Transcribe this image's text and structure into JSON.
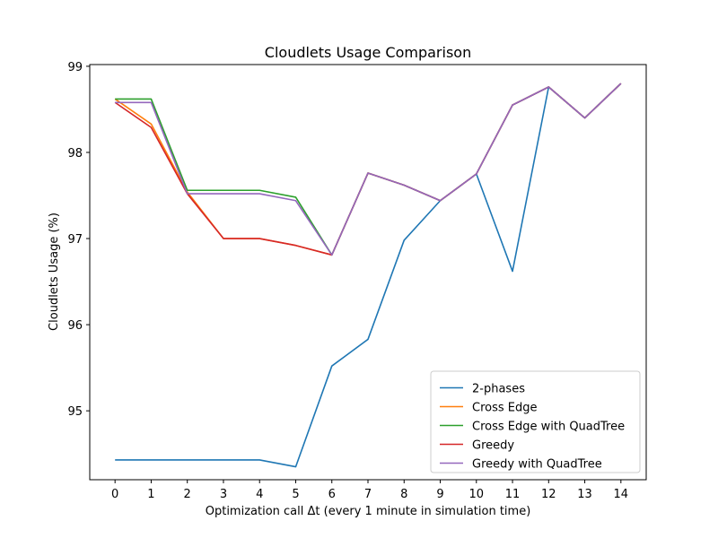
{
  "chart_data": {
    "type": "line",
    "title": "Cloudlets Usage Comparison",
    "xlabel": "Optimization call Δt (every 1 minute in simulation time)",
    "ylabel": "Cloudlets Usage (%)",
    "x": [
      0,
      1,
      2,
      3,
      4,
      5,
      6,
      7,
      8,
      9,
      10,
      11,
      12,
      13,
      14
    ],
    "xticks": [
      "0",
      "1",
      "2",
      "3",
      "4",
      "5",
      "6",
      "7",
      "8",
      "9",
      "10",
      "11",
      "12",
      "13",
      "14"
    ],
    "yticks": [
      95,
      96,
      97,
      98,
      99
    ],
    "ytick_labels": [
      "95",
      "96",
      "97",
      "98",
      "99"
    ],
    "xlim": [
      -0.7,
      14.7
    ],
    "ylim": [
      94.2,
      99.02
    ],
    "grid": false,
    "legend_position": "lower-right",
    "series": [
      {
        "name": "2-phases",
        "color": "#1f77b4",
        "values": [
          94.43,
          94.43,
          94.43,
          94.43,
          94.43,
          94.35,
          95.52,
          95.83,
          96.98,
          97.44,
          97.75,
          96.62,
          98.76,
          98.4,
          98.8
        ]
      },
      {
        "name": "Cross Edge",
        "color": "#ff7f0e",
        "values": [
          98.62,
          98.33,
          97.54,
          97.0,
          97.0,
          96.92,
          96.81,
          97.76,
          97.62,
          97.44,
          97.75,
          98.55,
          98.76,
          98.4,
          98.8
        ]
      },
      {
        "name": "Cross Edge with QuadTree",
        "color": "#2ca02c",
        "values": [
          98.62,
          98.62,
          97.56,
          97.56,
          97.56,
          97.48,
          96.81,
          97.76,
          97.62,
          97.44,
          97.75,
          98.55,
          98.76,
          98.4,
          98.8
        ]
      },
      {
        "name": "Greedy",
        "color": "#d62728",
        "values": [
          98.58,
          98.29,
          97.52,
          97.0,
          97.0,
          96.92,
          96.81,
          97.76,
          97.62,
          97.44,
          97.75,
          98.55,
          98.76,
          98.4,
          98.8
        ]
      },
      {
        "name": "Greedy with QuadTree",
        "color": "#9467bd",
        "values": [
          98.58,
          98.58,
          97.52,
          97.52,
          97.52,
          97.44,
          96.81,
          97.76,
          97.62,
          97.44,
          97.75,
          98.55,
          98.76,
          98.4,
          98.8
        ]
      }
    ]
  }
}
